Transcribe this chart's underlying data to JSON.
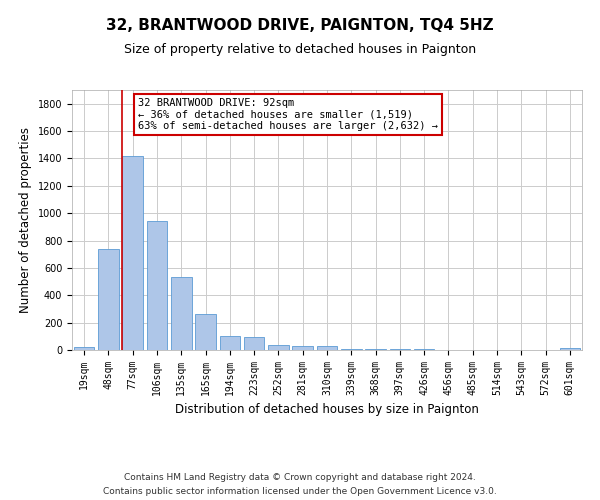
{
  "title": "32, BRANTWOOD DRIVE, PAIGNTON, TQ4 5HZ",
  "subtitle": "Size of property relative to detached houses in Paignton",
  "xlabel": "Distribution of detached houses by size in Paignton",
  "ylabel": "Number of detached properties",
  "categories": [
    "19sqm",
    "48sqm",
    "77sqm",
    "106sqm",
    "135sqm",
    "165sqm",
    "194sqm",
    "223sqm",
    "252sqm",
    "281sqm",
    "310sqm",
    "339sqm",
    "368sqm",
    "397sqm",
    "426sqm",
    "456sqm",
    "485sqm",
    "514sqm",
    "543sqm",
    "572sqm",
    "601sqm"
  ],
  "values": [
    20,
    740,
    1420,
    940,
    530,
    265,
    105,
    95,
    38,
    28,
    28,
    10,
    10,
    5,
    5,
    2,
    2,
    2,
    2,
    2,
    15
  ],
  "bar_color": "#aec6e8",
  "bar_edge_color": "#5b9bd5",
  "vline_x_index": 2,
  "vline_color": "#cc0000",
  "annotation_text": "32 BRANTWOOD DRIVE: 92sqm\n← 36% of detached houses are smaller (1,519)\n63% of semi-detached houses are larger (2,632) →",
  "annotation_box_color": "#cc0000",
  "ylim": [
    0,
    1900
  ],
  "yticks": [
    0,
    200,
    400,
    600,
    800,
    1000,
    1200,
    1400,
    1600,
    1800
  ],
  "grid_color": "#cccccc",
  "background_color": "#ffffff",
  "footer_line1": "Contains HM Land Registry data © Crown copyright and database right 2024.",
  "footer_line2": "Contains public sector information licensed under the Open Government Licence v3.0.",
  "title_fontsize": 11,
  "subtitle_fontsize": 9,
  "axis_label_fontsize": 8.5,
  "tick_fontsize": 7,
  "annotation_fontsize": 7.5,
  "footer_fontsize": 6.5
}
